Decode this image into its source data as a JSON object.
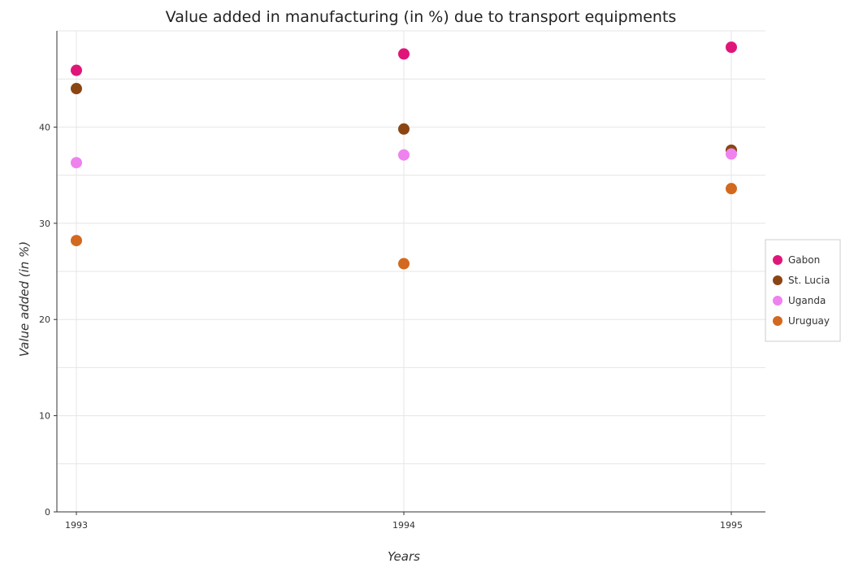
{
  "chart_data": {
    "type": "scatter",
    "title": "Value added in manufacturing (in %) due to transport equipments",
    "xlabel": "Years",
    "ylabel": "Value added (in %)",
    "categories": [
      "1993",
      "1994",
      "1995"
    ],
    "y_ticks": [
      "0",
      "10",
      "20",
      "30",
      "40"
    ],
    "ylim": [
      0,
      50
    ],
    "grid": true,
    "legend_position": "right",
    "series": [
      {
        "name": "Gabon",
        "color": "#e0157a",
        "values": [
          45.9,
          47.6,
          48.3
        ]
      },
      {
        "name": "St. Lucia",
        "color": "#8b4513",
        "values": [
          44.0,
          39.8,
          37.6
        ]
      },
      {
        "name": "Uganda",
        "color": "#ee82ee",
        "values": [
          36.3,
          37.1,
          37.2
        ]
      },
      {
        "name": "Uruguay",
        "color": "#d2691e",
        "values": [
          28.2,
          25.8,
          33.6
        ]
      }
    ]
  }
}
